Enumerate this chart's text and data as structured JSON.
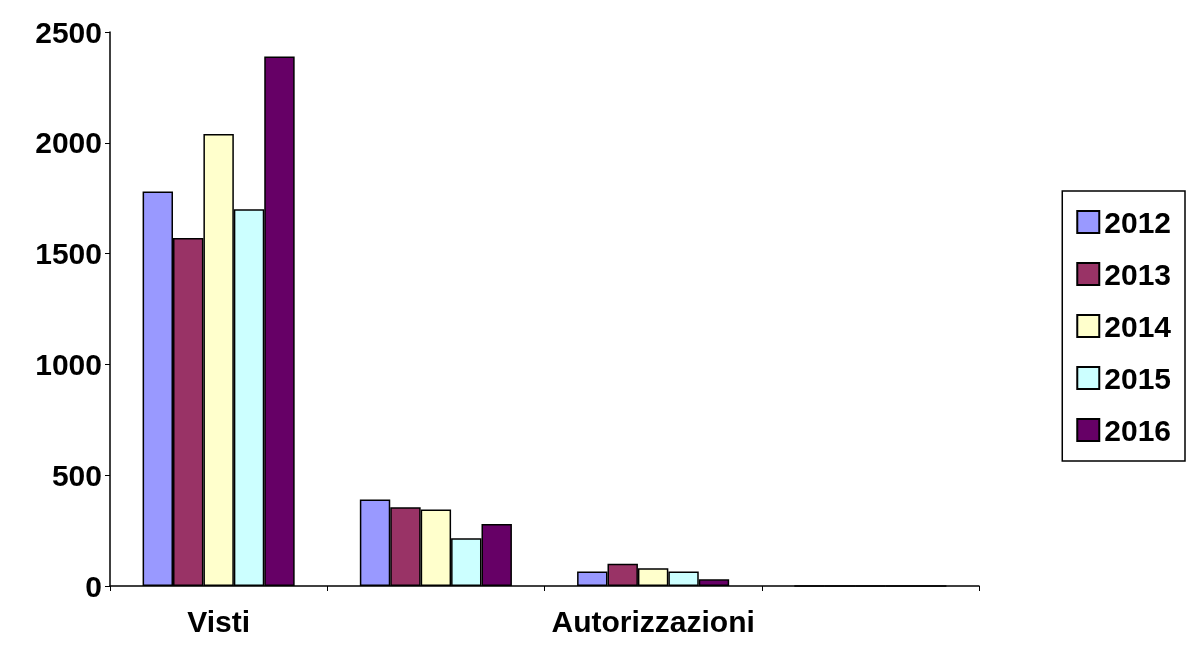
{
  "chart_data": {
    "type": "bar",
    "categories": [
      "Visti",
      null,
      "Autorizzazioni",
      null
    ],
    "series": [
      {
        "name": "2012",
        "color": "#9999ff",
        "values": [
          1780,
          390,
          65,
          0
        ]
      },
      {
        "name": "2013",
        "color": "#993366",
        "values": [
          1570,
          355,
          100,
          0
        ]
      },
      {
        "name": "2014",
        "color": "#ffffcc",
        "values": [
          2040,
          345,
          80,
          0
        ]
      },
      {
        "name": "2015",
        "color": "#ccffff",
        "values": [
          1700,
          215,
          65,
          0
        ]
      },
      {
        "name": "2016",
        "color": "#660066",
        "values": [
          2390,
          280,
          30,
          0
        ]
      }
    ],
    "ylim": [
      0,
      2500
    ],
    "yticks": [
      0,
      500,
      1000,
      1500,
      2000,
      2500
    ],
    "grid": false,
    "legend": "right"
  }
}
